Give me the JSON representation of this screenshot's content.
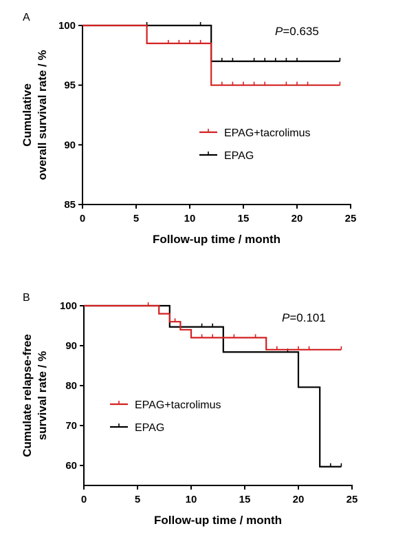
{
  "chart_data": [
    {
      "panel": "A",
      "type": "line",
      "step": true,
      "title": "",
      "xlabel": "Follow-up time / month",
      "ylabel_lines": [
        "Cumulative",
        "overall survival rate / %"
      ],
      "xlim": [
        0,
        25
      ],
      "ylim": [
        85,
        100
      ],
      "xticks": [
        0,
        5,
        10,
        15,
        20,
        25
      ],
      "yticks": [
        85,
        90,
        95,
        100
      ],
      "annotation": {
        "italic": "P",
        "rest": "=0.635"
      },
      "legend_placement": "center-right",
      "series": [
        {
          "name": "EPAG+tacrolimus",
          "color": "#d42020",
          "steps": [
            [
              0,
              100
            ],
            [
              6,
              98.5
            ],
            [
              12,
              95
            ],
            [
              24,
              95
            ]
          ],
          "censored": [
            [
              8,
              98.5
            ],
            [
              9,
              98.5
            ],
            [
              10,
              98.5
            ],
            [
              11,
              98.5
            ],
            [
              13,
              95
            ],
            [
              14,
              95
            ],
            [
              15,
              95
            ],
            [
              16,
              95
            ],
            [
              17,
              95
            ],
            [
              19,
              95
            ],
            [
              20,
              95
            ],
            [
              21,
              95
            ],
            [
              24,
              95
            ]
          ]
        },
        {
          "name": "EPAG",
          "color": "#000000",
          "steps": [
            [
              0,
              100
            ],
            [
              12,
              97
            ],
            [
              24,
              97
            ]
          ],
          "censored": [
            [
              6,
              100
            ],
            [
              11,
              100
            ],
            [
              13,
              97
            ],
            [
              14,
              97
            ],
            [
              16,
              97
            ],
            [
              17,
              97
            ],
            [
              18,
              97
            ],
            [
              19,
              97
            ],
            [
              20,
              97
            ],
            [
              24,
              97
            ]
          ]
        }
      ]
    },
    {
      "panel": "B",
      "type": "line",
      "step": true,
      "title": "",
      "xlabel": "Follow-up time / month",
      "ylabel_lines": [
        "Cumulate relapse-free",
        "survival rate / %"
      ],
      "xlim": [
        0,
        25
      ],
      "ylim": [
        55,
        100
      ],
      "xticks": [
        0,
        5,
        10,
        15,
        20,
        25
      ],
      "yticks": [
        60,
        70,
        80,
        90,
        100
      ],
      "annotation": {
        "italic": "P",
        "rest": "=0.101"
      },
      "legend_placement": "center-left",
      "series": [
        {
          "name": "EPAG+tacrolimus",
          "color": "#d42020",
          "steps": [
            [
              0,
              100
            ],
            [
              7,
              98
            ],
            [
              8,
              96
            ],
            [
              9,
              94
            ],
            [
              10,
              92
            ],
            [
              17,
              89
            ],
            [
              24,
              89
            ]
          ],
          "censored": [
            [
              6,
              100
            ],
            [
              8.5,
              96
            ],
            [
              11,
              92
            ],
            [
              12,
              92
            ],
            [
              14,
              92
            ],
            [
              16,
              92
            ],
            [
              18,
              89
            ],
            [
              20,
              89
            ],
            [
              21,
              89
            ],
            [
              24,
              89
            ]
          ]
        },
        {
          "name": "EPAG",
          "color": "#000000",
          "steps": [
            [
              0,
              100
            ],
            [
              8,
              94.7
            ],
            [
              13,
              88.4
            ],
            [
              20,
              79.6
            ],
            [
              22,
              59.7
            ],
            [
              24,
              59.7
            ]
          ],
          "censored": [
            [
              11,
              94.7
            ],
            [
              12,
              94.7
            ],
            [
              19,
              88.4
            ],
            [
              23,
              59.7
            ],
            [
              24,
              59.7
            ]
          ]
        }
      ]
    }
  ]
}
